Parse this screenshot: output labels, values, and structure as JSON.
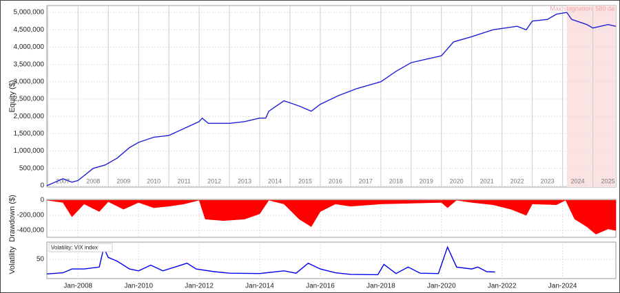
{
  "chart_data": [
    {
      "type": "line",
      "y_label": "Equity ($)",
      "color": "#1f1fd6",
      "xlim": [
        2006.97,
        2025.76
      ],
      "ylim": [
        -40000,
        5200000
      ],
      "yticks": [
        0,
        {
          "value": 500000,
          "label": "500,000"
        },
        {
          "value": 1000000,
          "label": "1,000,000"
        },
        {
          "value": 1500000,
          "label": "1,500,000"
        },
        {
          "value": 2000000,
          "label": "2,000,000"
        },
        {
          "value": 2500000,
          "label": "2,500,000"
        },
        {
          "value": 3000000,
          "label": "3,000,000"
        },
        {
          "value": 3500000,
          "label": "3,500,000"
        },
        {
          "value": 4000000,
          "label": "4,000,000"
        },
        {
          "value": 4500000,
          "label": "4,500,000"
        },
        {
          "value": 5000000,
          "label": "5,000,000"
        }
      ],
      "xticks": [
        {
          "value": 2007,
          "label": "2007"
        },
        {
          "value": 2008,
          "label": "2008"
        },
        {
          "value": 2009,
          "label": "2009"
        },
        {
          "value": 2010,
          "label": "2010"
        },
        {
          "value": 2011,
          "label": "2011"
        },
        {
          "value": 2012,
          "label": "2012"
        },
        {
          "value": 2013,
          "label": "2013"
        },
        {
          "value": 2014,
          "label": "2014"
        },
        {
          "value": 2015,
          "label": "2015"
        },
        {
          "value": 2016,
          "label": "2016"
        },
        {
          "value": 2017,
          "label": "2017"
        },
        {
          "value": 2018,
          "label": "2018"
        },
        {
          "value": 2019,
          "label": "2019"
        },
        {
          "value": 2020,
          "label": "2020"
        },
        {
          "value": 2021,
          "label": "2021"
        },
        {
          "value": 2022,
          "label": "2022"
        },
        {
          "value": 2023,
          "label": "2023"
        },
        {
          "value": 2024,
          "label": "2024"
        },
        {
          "value": 2025,
          "label": "2025"
        }
      ],
      "stagnation": {
        "label": "Max stagnation: 580 da",
        "start": 2024.14,
        "end": 2025.76,
        "color": "#fbe3e3"
      },
      "x": [
        2006.97,
        2007.5,
        2007.8,
        2008.0,
        2008.5,
        2008.9,
        2009.3,
        2009.7,
        2010.0,
        2010.5,
        2011.0,
        2011.5,
        2012.0,
        2012.1,
        2012.3,
        2013.0,
        2013.5,
        2014.0,
        2014.2,
        2014.3,
        2014.8,
        2015.3,
        2015.7,
        2016.0,
        2016.6,
        2017.2,
        2018.0,
        2018.5,
        2019.0,
        2019.5,
        2020.0,
        2020.2,
        2020.4,
        2021.0,
        2021.7,
        2022.5,
        2022.8,
        2023.0,
        2023.5,
        2023.8,
        2024.14,
        2024.3,
        2024.8,
        2025.0,
        2025.5,
        2025.76
      ],
      "values": [
        0,
        200000,
        100000,
        150000,
        500000,
        600000,
        800000,
        1100000,
        1250000,
        1400000,
        1450000,
        1650000,
        1850000,
        1950000,
        1800000,
        1800000,
        1850000,
        1950000,
        1950000,
        2150000,
        2450000,
        2300000,
        2150000,
        2350000,
        2600000,
        2800000,
        3000000,
        3300000,
        3550000,
        3650000,
        3750000,
        3950000,
        4150000,
        4300000,
        4500000,
        4600000,
        4500000,
        4750000,
        4800000,
        4950000,
        5000000,
        4800000,
        4650000,
        4550000,
        4650000,
        4600000
      ]
    },
    {
      "type": "area",
      "y_label": "Drawdown ($)",
      "color": "#ff0000",
      "xlim": [
        2006.97,
        2025.76
      ],
      "ylim": [
        -490000,
        10000
      ],
      "yticks": [
        0,
        {
          "value": -200000,
          "label": "-200,000"
        },
        {
          "value": -400000,
          "label": "-400,000"
        }
      ],
      "x": [
        2006.97,
        2007.5,
        2007.8,
        2008.2,
        2008.7,
        2009.0,
        2009.5,
        2010.0,
        2010.5,
        2011.0,
        2011.5,
        2012.0,
        2012.2,
        2012.8,
        2013.5,
        2014.0,
        2014.3,
        2014.8,
        2015.3,
        2015.7,
        2016.0,
        2016.5,
        2017.0,
        2018.0,
        2019.0,
        2020.0,
        2020.2,
        2020.5,
        2021.0,
        2021.7,
        2022.3,
        2022.8,
        2023.0,
        2023.8,
        2024.1,
        2024.4,
        2024.8,
        2025.1,
        2025.5,
        2025.76
      ],
      "values": [
        0,
        -30000,
        -220000,
        -50000,
        -150000,
        -20000,
        -120000,
        -30000,
        -100000,
        -80000,
        -50000,
        0,
        -250000,
        -270000,
        -250000,
        -180000,
        0,
        -50000,
        -250000,
        -350000,
        -150000,
        -50000,
        -80000,
        -50000,
        -40000,
        -30000,
        -100000,
        0,
        -30000,
        -60000,
        -120000,
        -200000,
        -50000,
        -60000,
        0,
        -250000,
        -350000,
        -450000,
        -380000,
        -400000
      ]
    },
    {
      "type": "line",
      "y_label": "Volatility",
      "series_label": "Volatility: VIX index",
      "color": "#0000ee",
      "xlim": [
        2006.97,
        2025.76
      ],
      "ylim": [
        0,
        95
      ],
      "yticks": [
        50
      ],
      "xticks": [
        {
          "value": 2008,
          "label": "Jan-2008"
        },
        {
          "value": 2010,
          "label": "Jan-2010"
        },
        {
          "value": 2012,
          "label": "Jan-2012"
        },
        {
          "value": 2014,
          "label": "Jan-2014"
        },
        {
          "value": 2016,
          "label": "Jan-2016"
        },
        {
          "value": 2018,
          "label": "Jan-2018"
        },
        {
          "value": 2020,
          "label": "Jan-2020"
        },
        {
          "value": 2022,
          "label": "Jan-2022"
        },
        {
          "value": 2024,
          "label": "Jan-2024"
        }
      ],
      "x": [
        2006.97,
        2007.5,
        2007.8,
        2008.2,
        2008.7,
        2008.85,
        2009.0,
        2009.3,
        2009.7,
        2010.0,
        2010.4,
        2010.8,
        2011.6,
        2011.9,
        2012.5,
        2013.0,
        2014.0,
        2014.8,
        2015.2,
        2015.6,
        2016.0,
        2016.5,
        2017.0,
        2017.9,
        2018.1,
        2018.5,
        2018.9,
        2019.3,
        2019.9,
        2020.2,
        2020.5,
        2021.0,
        2021.2,
        2021.5,
        2021.77
      ],
      "values": [
        12,
        15,
        25,
        25,
        30,
        80,
        55,
        45,
        25,
        20,
        35,
        20,
        40,
        25,
        18,
        14,
        13,
        20,
        14,
        40,
        25,
        15,
        11,
        10,
        37,
        13,
        30,
        14,
        13,
        82,
        30,
        25,
        30,
        18,
        17
      ]
    }
  ]
}
